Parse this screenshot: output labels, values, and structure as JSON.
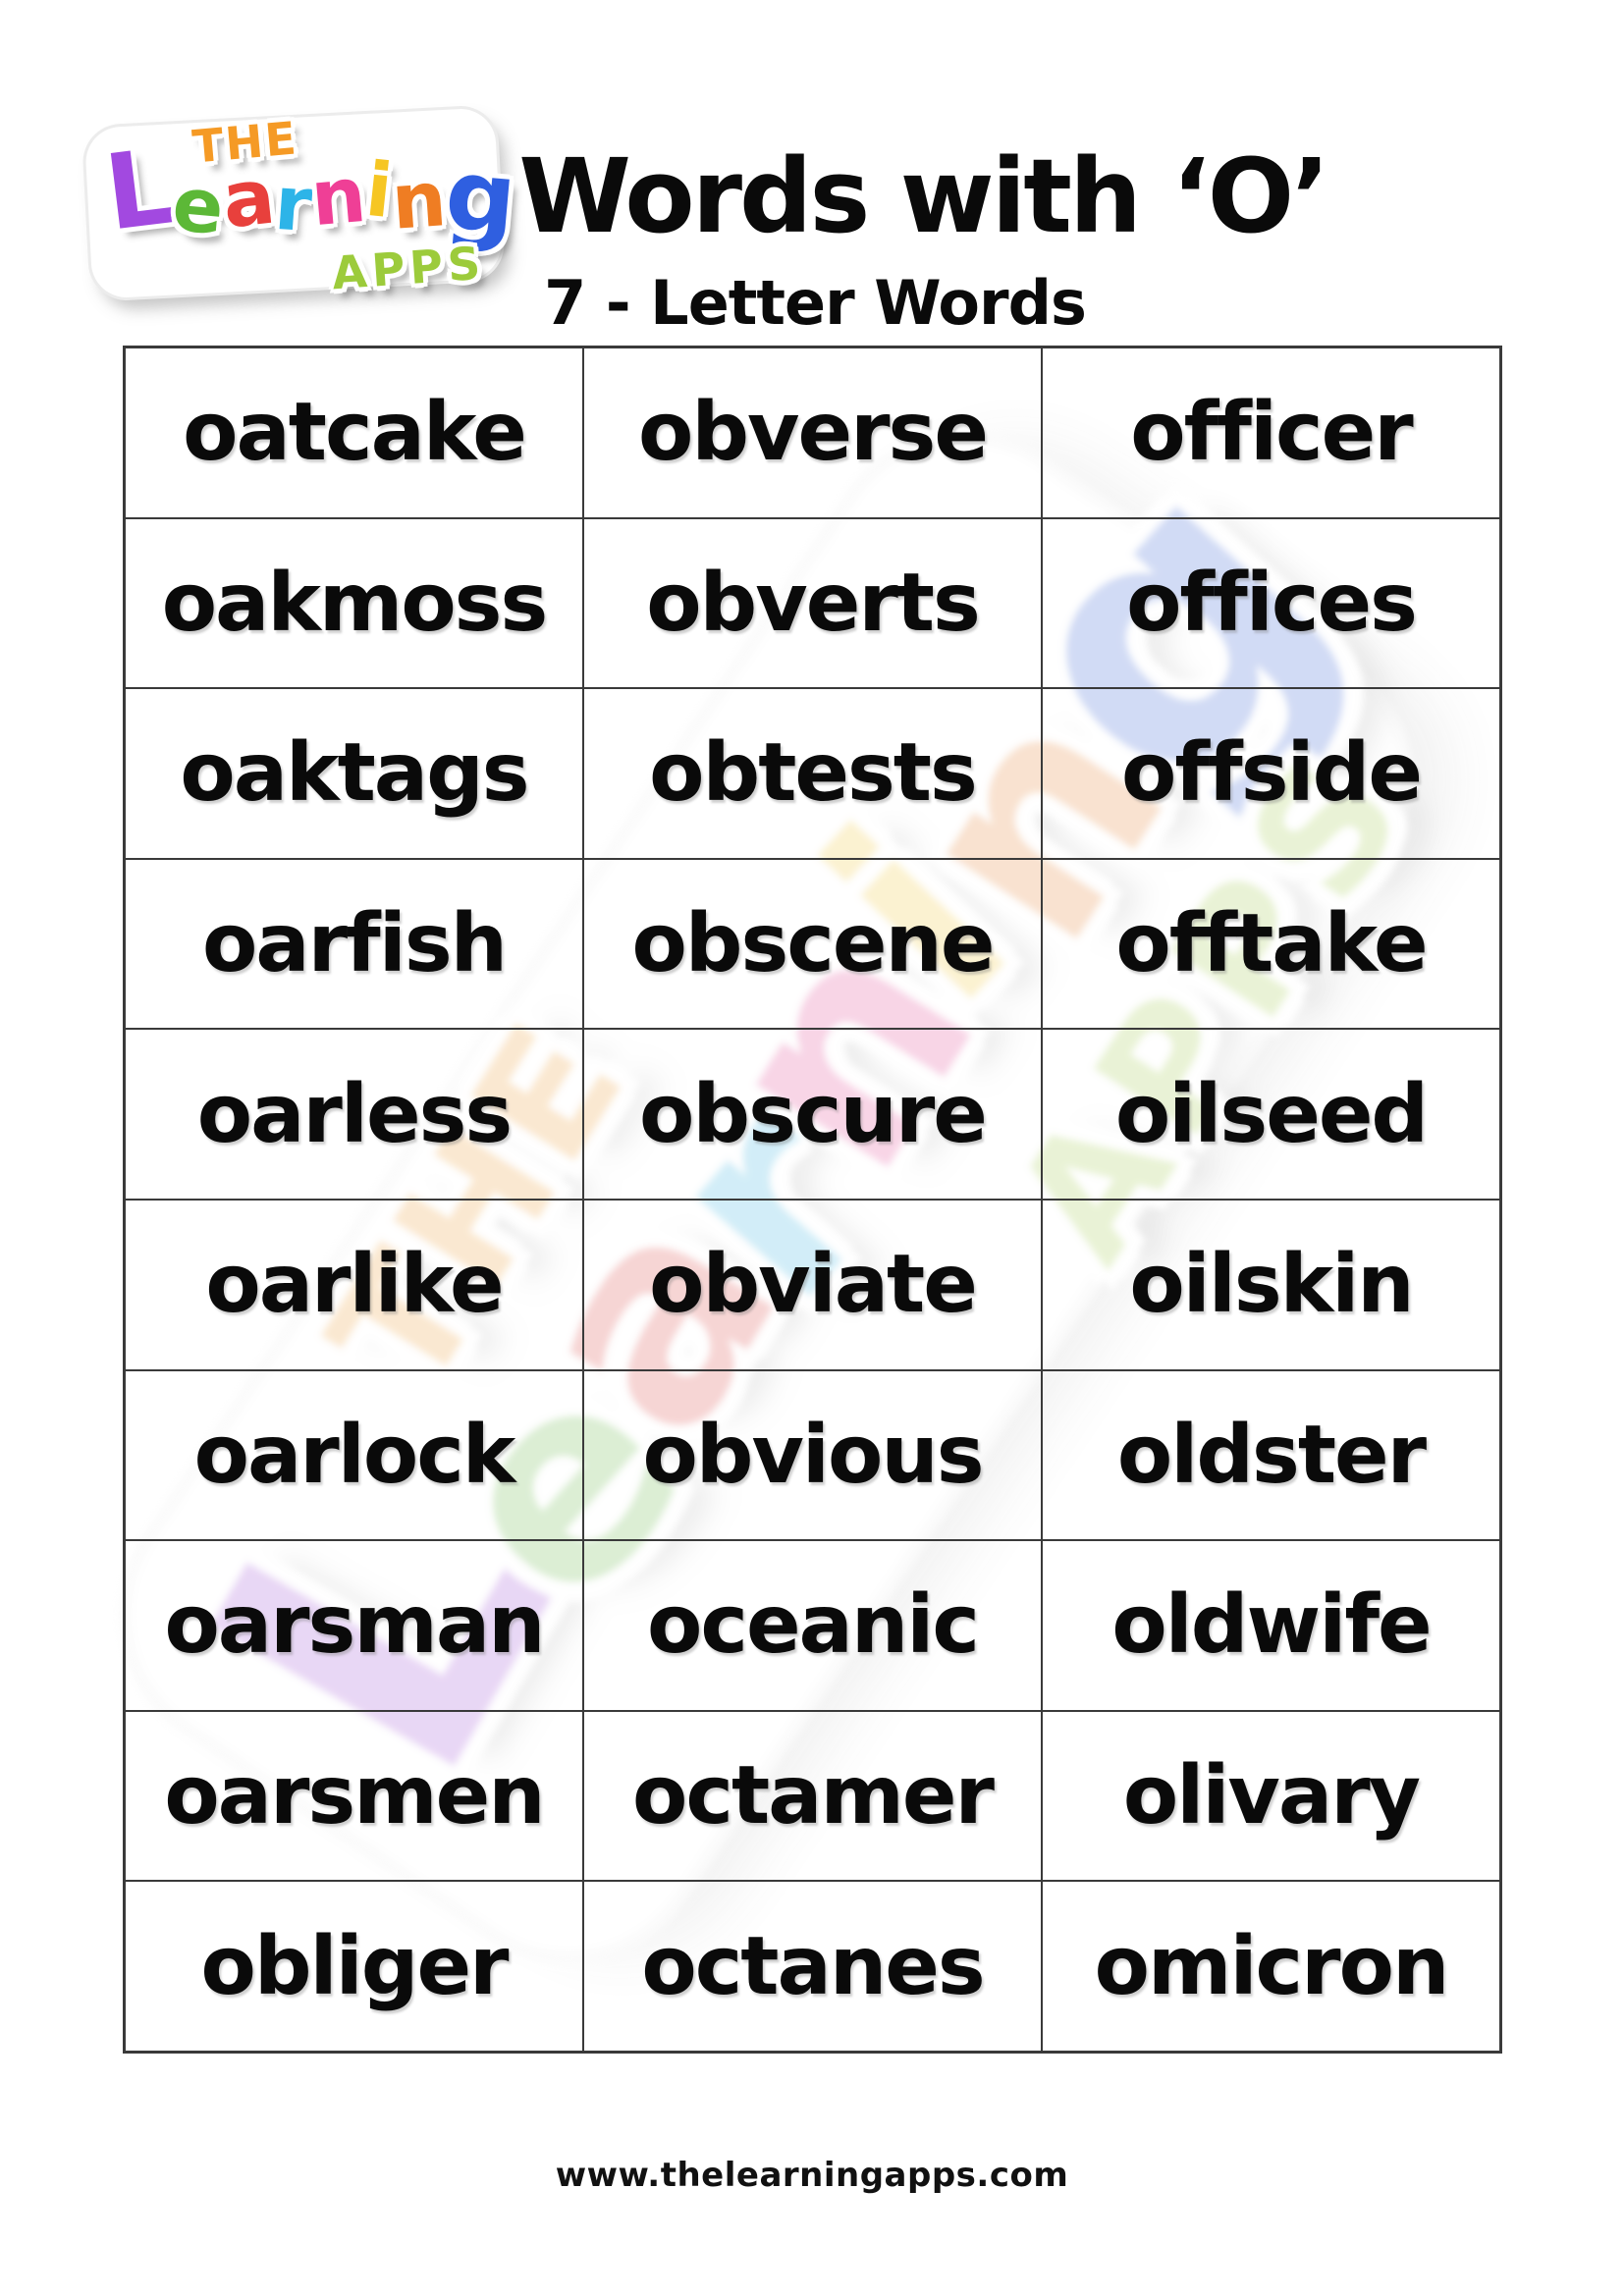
{
  "header": {
    "title": "Words with ‘O’",
    "subtitle": "7 - Letter Words"
  },
  "logo": {
    "the": "THE",
    "the_color": "#f59a25",
    "learning_letters": [
      {
        "ch": "L",
        "color": "#a249e0"
      },
      {
        "ch": "e",
        "color": "#5cb837"
      },
      {
        "ch": "a",
        "color": "#e8403c"
      },
      {
        "ch": "r",
        "color": "#2db4e8"
      },
      {
        "ch": "n",
        "color": "#ef3f96"
      },
      {
        "ch": "i",
        "color": "#f6c623"
      },
      {
        "ch": "n",
        "color": "#ef7d23"
      },
      {
        "ch": "g",
        "color": "#2f5fe0"
      }
    ],
    "apps": "APPS",
    "apps_color": "#9ccb3b"
  },
  "word_table": {
    "columns": 3,
    "rows": [
      [
        "oatcake",
        "obverse",
        "officer"
      ],
      [
        "oakmoss",
        "obverts",
        "offices"
      ],
      [
        "oaktags",
        "obtests",
        "offside"
      ],
      [
        "oarfish",
        "obscene",
        "offtake"
      ],
      [
        "oarless",
        "obscure",
        "oilseed"
      ],
      [
        "oarlike",
        "obviate",
        "oilskin"
      ],
      [
        "oarlock",
        "obvious",
        "oldster"
      ],
      [
        "oarsman",
        "oceanic",
        "oldwife"
      ],
      [
        "oarsmen",
        "octamer",
        "olivary"
      ],
      [
        "obliger",
        "octanes",
        "omicron"
      ]
    ]
  },
  "footer": {
    "url": "www.thelearningapps.com"
  },
  "colors": {
    "page_bg": "#ffffff",
    "grid_line": "#3a3a3a",
    "word_text": "#0a0a0a"
  }
}
